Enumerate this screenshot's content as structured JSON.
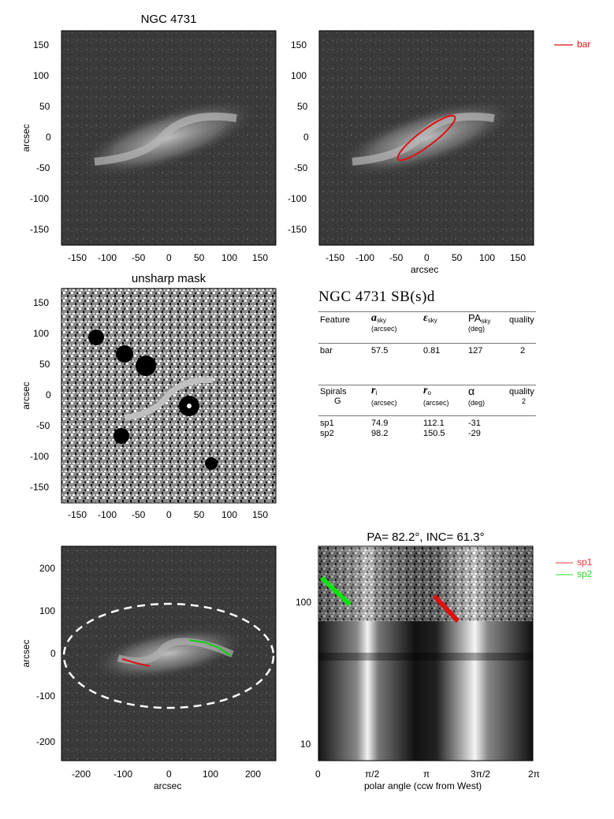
{
  "panel1": {
    "title": "NGC 4731",
    "ylabel": "arcsec",
    "yticks": [
      "150",
      "100",
      "50",
      "0",
      "-50",
      "-100",
      "-150"
    ],
    "xticks": [
      "-150",
      "-100",
      "-50",
      "0",
      "50",
      "100",
      "150"
    ]
  },
  "panel2": {
    "xlabel": "arcsec",
    "yticks": [
      "150",
      "100",
      "50",
      "0",
      "-50",
      "-100",
      "-150"
    ],
    "xticks": [
      "-150",
      "-100",
      "-50",
      "0",
      "50",
      "100",
      "150"
    ],
    "legend": "bar",
    "bar_color": "#e01010"
  },
  "panel3": {
    "title": "unsharp mask",
    "ylabel": "arcsec",
    "yticks": [
      "150",
      "100",
      "50",
      "0",
      "-50",
      "-100",
      "-150"
    ],
    "xticks": [
      "-150",
      "-100",
      "-50",
      "0",
      "50",
      "100",
      "150"
    ]
  },
  "table": {
    "heading": "NGC 4731  SB(s)d",
    "h1": {
      "feature": "Feature",
      "a": "a",
      "a_sub": "sky",
      "a_unit": "(arcsec)",
      "e": "ε",
      "e_sub": "sky",
      "pa": "PA",
      "pa_sub": "sky",
      "pa_unit": "(deg)",
      "quality": "quality"
    },
    "bar": {
      "name": "bar",
      "a": "57.5",
      "e": "0.81",
      "pa": "127",
      "quality": "2"
    },
    "h2": {
      "spirals": "Spirals",
      "g": "G",
      "ri": "r",
      "ri_sub": "i",
      "ri_unit": "(arcsec)",
      "ro": "r",
      "ro_sub": "o",
      "ro_unit": "(arcsec)",
      "alpha": "α",
      "alpha_unit": "(deg)",
      "quality": "quality",
      "quality_val": "2"
    },
    "spirals": [
      {
        "name": "sp1",
        "ri": "74.9",
        "ro": "112.1",
        "alpha": "-31"
      },
      {
        "name": "sp2",
        "ri": "98.2",
        "ro": "150.5",
        "alpha": "-29"
      }
    ]
  },
  "panel5": {
    "ylabel": "arcsec",
    "xlabel": "arcsec",
    "yticks": [
      "200",
      "100",
      "0",
      "-100",
      "-200"
    ],
    "xticks": [
      "-200",
      "-100",
      "0",
      "100",
      "200"
    ],
    "sp1_color": "#e01010",
    "sp2_color": "#10d010"
  },
  "panel6": {
    "title": "PA=  82.2°, INC=  61.3°",
    "xlabel": "polar angle (ccw from West)",
    "xticks": [
      "0",
      "π/2",
      "π",
      "3π/2",
      "2π"
    ],
    "yticks": [
      "100",
      "10"
    ],
    "legend": [
      "sp1",
      "sp2"
    ],
    "legend_colors": [
      "#f03030",
      "#20e020"
    ]
  }
}
